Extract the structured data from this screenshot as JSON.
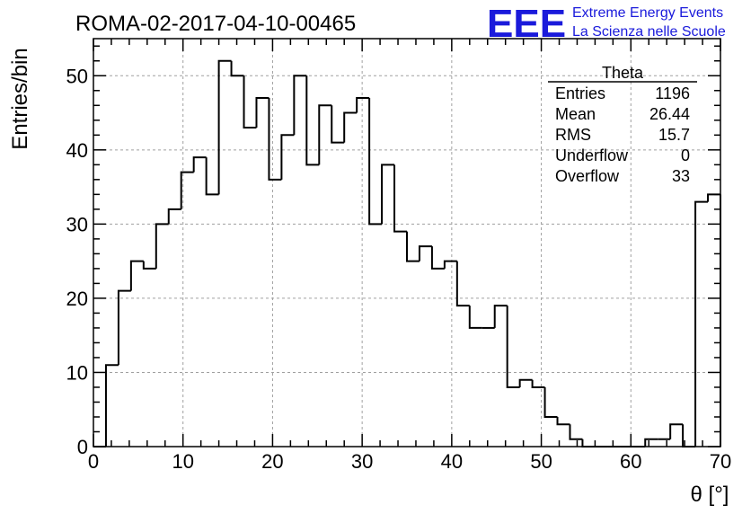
{
  "header": {
    "run_title": "ROMA-02-2017-04-10-00465",
    "logo": {
      "mark": "EEE",
      "line1": "Extreme Energy Events",
      "line2": "La Scienza nelle Scuole",
      "color": "#1a1adb"
    }
  },
  "stats_box": {
    "title": "Theta",
    "rows": [
      {
        "label": "Entries",
        "value": "1196"
      },
      {
        "label": "Mean",
        "value": "26.44"
      },
      {
        "label": "RMS",
        "value": "15.7"
      },
      {
        "label": "Underflow",
        "value": "0"
      },
      {
        "label": "Overflow",
        "value": "33"
      }
    ]
  },
  "chart_data": {
    "type": "bar",
    "histogram_style": "step",
    "xlabel": "θ [°]",
    "ylabel": "Entries/bin",
    "xlim": [
      0,
      70
    ],
    "ylim": [
      0,
      55
    ],
    "x_ticks": [
      0,
      10,
      20,
      30,
      40,
      50,
      60,
      70
    ],
    "y_ticks": [
      0,
      10,
      20,
      30,
      40,
      50
    ],
    "grid": true,
    "legend": "top-right",
    "bin_width": 1.4,
    "bin_start": 0,
    "values": [
      0,
      11,
      21,
      25,
      24,
      30,
      32,
      37,
      39,
      34,
      52,
      50,
      43,
      47,
      36,
      42,
      50,
      38,
      46,
      41,
      45,
      47,
      30,
      38,
      29,
      25,
      27,
      24,
      25,
      19,
      16,
      16,
      19,
      8,
      9,
      8,
      4,
      3,
      1,
      0,
      0,
      0,
      0,
      0,
      1,
      1,
      3,
      0,
      33,
      34
    ],
    "line_color": "#000000"
  }
}
